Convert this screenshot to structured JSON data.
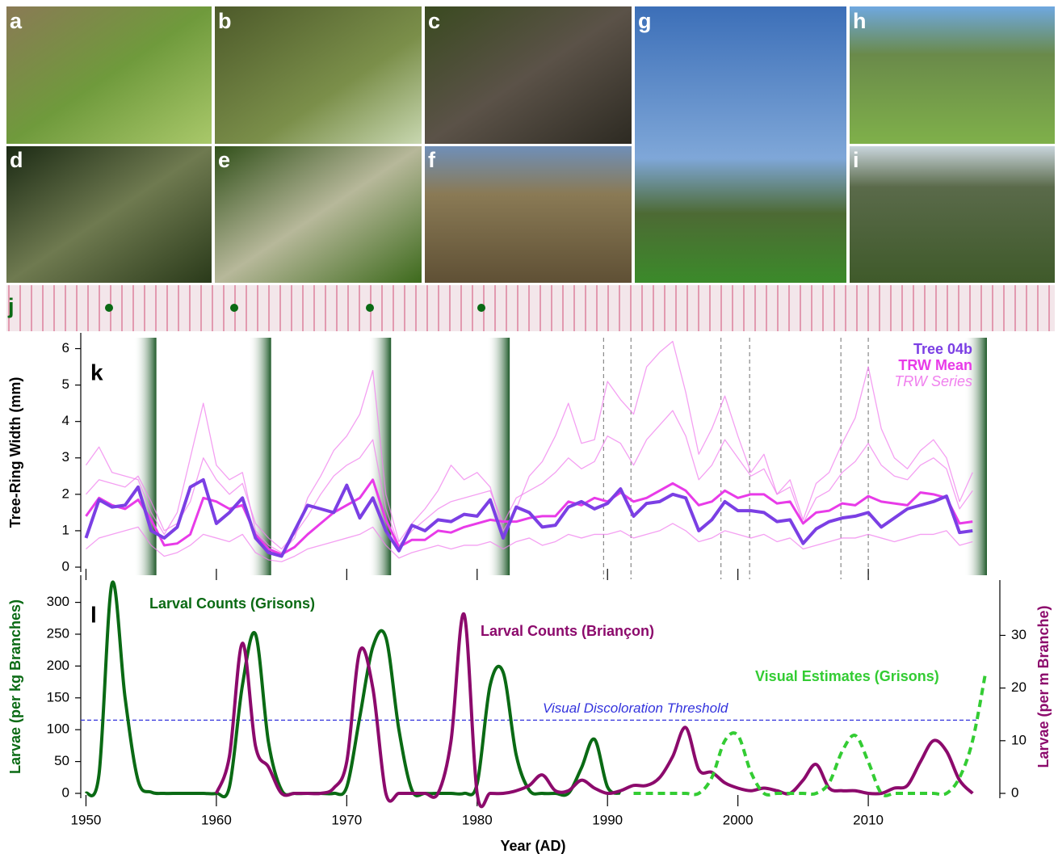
{
  "photo_panels": [
    "a",
    "b",
    "c",
    "d",
    "e",
    "f",
    "g",
    "h",
    "i"
  ],
  "strip_label": "j",
  "chart_data": [
    {
      "type": "line",
      "panel_label": "k",
      "ylabel": "Tree-Ring Width (mm)",
      "xlim": [
        1949.6,
        2019.1
      ],
      "ylim": [
        0,
        6.3
      ],
      "yticks": [
        0,
        1,
        2,
        3,
        4,
        5,
        6
      ],
      "legend": "top-right",
      "outbreak_bands": [
        1955.4,
        1964.2,
        1973.4,
        1982.5,
        2019.1
      ],
      "event_lines": [
        1989.7,
        1991.8,
        1998.7,
        2000.9,
        2007.9,
        2010
      ],
      "x": [
        1950,
        1951,
        1952,
        1953,
        1954,
        1955,
        1956,
        1957,
        1958,
        1959,
        1960,
        1961,
        1962,
        1963,
        1964,
        1965,
        1966,
        1967,
        1968,
        1969,
        1970,
        1971,
        1972,
        1973,
        1974,
        1975,
        1976,
        1977,
        1978,
        1979,
        1980,
        1981,
        1982,
        1983,
        1984,
        1985,
        1986,
        1987,
        1988,
        1989,
        1990,
        1991,
        1992,
        1993,
        1994,
        1995,
        1996,
        1997,
        1998,
        1999,
        2000,
        2001,
        2002,
        2003,
        2004,
        2005,
        2006,
        2007,
        2008,
        2009,
        2010,
        2011,
        2012,
        2013,
        2014,
        2015,
        2016,
        2017,
        2018
      ],
      "series": [
        {
          "name": "TRW Series",
          "color": "#f080ee",
          "values": [
            [
              2.8,
              3.3,
              2.6,
              2.5,
              2.4,
              1.5,
              0.9,
              1.5,
              3.0,
              4.5,
              2.8,
              2.4,
              2.6,
              1.0,
              0.6,
              0.4,
              0.8,
              1.9,
              2.5,
              3.2,
              3.6,
              4.2,
              5.4,
              2.0,
              0.7,
              1.2,
              1.6,
              2.1,
              2.8,
              2.4,
              2.6,
              2.2,
              1.0,
              1.6,
              2.5,
              2.9,
              3.6,
              4.5,
              3.4,
              3.5,
              5.1,
              4.6,
              4.2,
              5.5,
              5.9,
              6.2,
              4.8,
              3.1,
              3.8,
              4.7,
              3.6,
              2.6,
              3.1,
              2.0,
              2.4,
              1.3,
              2.3,
              2.6,
              3.4,
              4.1,
              5.5,
              3.8,
              3.0,
              2.7,
              3.2,
              3.5,
              3.0,
              1.8,
              2.6
            ],
            [
              0.5,
              0.8,
              0.9,
              1.0,
              1.1,
              0.6,
              0.3,
              0.4,
              0.6,
              0.9,
              0.8,
              0.7,
              0.9,
              0.4,
              0.2,
              0.15,
              0.3,
              0.5,
              0.6,
              0.7,
              0.8,
              0.9,
              1.1,
              0.6,
              0.25,
              0.4,
              0.5,
              0.6,
              0.5,
              0.6,
              0.6,
              0.7,
              0.5,
              0.7,
              0.8,
              0.6,
              0.7,
              0.9,
              0.8,
              0.9,
              0.9,
              1.0,
              0.8,
              0.9,
              1.0,
              1.2,
              1.0,
              0.7,
              0.8,
              1.0,
              0.9,
              0.8,
              0.9,
              0.7,
              0.8,
              0.5,
              0.6,
              0.7,
              0.8,
              0.8,
              0.9,
              0.8,
              0.7,
              0.8,
              0.9,
              0.9,
              1.0,
              0.6,
              0.7
            ],
            [
              2.0,
              2.4,
              2.3,
              2.2,
              2.5,
              1.8,
              1.0,
              1.2,
              1.8,
              3.0,
              2.4,
              2.0,
              2.3,
              1.2,
              0.8,
              0.5,
              0.9,
              1.4,
              2.0,
              2.5,
              2.8,
              3.0,
              3.5,
              1.6,
              0.6,
              1.0,
              1.3,
              1.6,
              1.8,
              1.9,
              2.0,
              2.1,
              1.2,
              1.9,
              2.1,
              2.3,
              2.6,
              3.0,
              2.7,
              2.9,
              3.6,
              3.4,
              2.8,
              3.5,
              3.9,
              4.3,
              3.6,
              2.4,
              2.8,
              3.5,
              3.0,
              2.5,
              2.7,
              2.0,
              2.2,
              1.2,
              1.9,
              2.1,
              2.6,
              2.9,
              3.4,
              2.8,
              2.5,
              2.4,
              2.8,
              3.0,
              2.7,
              1.6,
              2.1
            ]
          ]
        },
        {
          "name": "TRW Mean",
          "color": "#e83be8",
          "values": [
            1.4,
            1.9,
            1.7,
            1.6,
            1.85,
            1.3,
            0.6,
            0.65,
            0.9,
            1.9,
            1.8,
            1.6,
            1.7,
            0.9,
            0.5,
            0.35,
            0.55,
            0.9,
            1.2,
            1.5,
            1.7,
            1.9,
            2.4,
            1.3,
            0.55,
            0.75,
            0.75,
            1.0,
            0.95,
            1.1,
            1.2,
            1.3,
            1.25,
            1.25,
            1.35,
            1.4,
            1.4,
            1.8,
            1.7,
            1.9,
            1.8,
            2.05,
            1.8,
            1.9,
            2.1,
            2.3,
            2.1,
            1.7,
            1.8,
            2.1,
            1.9,
            2.0,
            2.0,
            1.75,
            1.8,
            1.2,
            1.5,
            1.55,
            1.75,
            1.7,
            1.95,
            1.8,
            1.75,
            1.7,
            2.05,
            2.0,
            1.9,
            1.2,
            1.25
          ]
        },
        {
          "name": "Tree 04b",
          "color": "#7b3fe4",
          "values": [
            0.8,
            1.85,
            1.65,
            1.7,
            2.2,
            1.0,
            0.8,
            1.1,
            2.2,
            2.4,
            1.2,
            1.5,
            1.9,
            0.8,
            0.4,
            0.3,
            1.0,
            1.7,
            1.6,
            1.5,
            2.25,
            1.35,
            1.9,
            1.0,
            0.45,
            1.15,
            1.0,
            1.3,
            1.25,
            1.45,
            1.4,
            1.85,
            0.8,
            1.65,
            1.5,
            1.1,
            1.15,
            1.65,
            1.8,
            1.6,
            1.75,
            2.15,
            1.4,
            1.75,
            1.8,
            2.0,
            1.9,
            1.0,
            1.3,
            1.8,
            1.55,
            1.55,
            1.5,
            1.25,
            1.3,
            0.65,
            1.05,
            1.25,
            1.35,
            1.4,
            1.5,
            1.1,
            1.35,
            1.6,
            1.7,
            1.8,
            1.95,
            0.95,
            1.0
          ]
        }
      ]
    },
    {
      "type": "line",
      "panel_label": "l",
      "xlabel": "Year (AD)",
      "ylabel": "Larvae (per kg Branches)",
      "y2label": "Larvae (per m Branche)",
      "xlim": [
        1949.6,
        2019.1
      ],
      "xticks": [
        1950,
        1960,
        1970,
        1980,
        1990,
        2000,
        2010
      ],
      "ylim": [
        0,
        335
      ],
      "yticks": [
        0,
        50,
        100,
        150,
        200,
        250,
        300
      ],
      "y2lim": [
        0,
        40.5
      ],
      "y2ticks": [
        0,
        10,
        20,
        30
      ],
      "threshold": {
        "label": "Visual Discoloration Threshold",
        "value": 115,
        "color": "#3333dd"
      },
      "series": [
        {
          "name": "Larval Counts (Grisons)",
          "color": "#0a6a14",
          "x": [
            1950,
            1951,
            1952,
            1953,
            1954,
            1955,
            1956,
            1957,
            1958,
            1959,
            1960,
            1961,
            1962,
            1963,
            1964,
            1965,
            1966,
            1967,
            1968,
            1969,
            1970,
            1971,
            1972,
            1973,
            1974,
            1975,
            1976,
            1977,
            1978,
            1979,
            1980,
            1981,
            1982,
            1983,
            1984,
            1985,
            1986,
            1987,
            1988,
            1989,
            1990,
            1991
          ],
          "values": [
            0,
            30,
            330,
            150,
            20,
            2,
            0,
            0,
            0,
            0,
            0,
            10,
            170,
            250,
            80,
            5,
            0,
            0,
            0,
            0,
            10,
            120,
            230,
            245,
            100,
            5,
            0,
            0,
            0,
            0,
            15,
            170,
            190,
            60,
            5,
            0,
            0,
            0,
            40,
            85,
            10,
            0
          ]
        },
        {
          "name": "Larval Counts (Briançon)",
          "color": "#8c0a6c",
          "axis": "y2",
          "x": [
            1960,
            1961,
            1962,
            1963,
            1964,
            1965,
            1966,
            1967,
            1968,
            1969,
            1970,
            1971,
            1972,
            1973,
            1974,
            1975,
            1976,
            1977,
            1978,
            1979,
            1980,
            1981,
            1982,
            1983,
            1984,
            1985,
            1986,
            1987,
            1988,
            1989,
            1990,
            1991,
            1992,
            1993,
            1994,
            1995,
            1996,
            1997,
            1998,
            1999,
            2000,
            2001,
            2002,
            2003,
            2004,
            2005,
            2006,
            2007,
            2008,
            2009,
            2010,
            2011,
            2012,
            2013,
            2014,
            2015,
            2016,
            2017,
            2018
          ],
          "values": [
            0,
            7,
            28.5,
            9,
            5,
            0,
            0,
            0,
            0,
            1,
            6,
            27,
            20,
            0,
            0,
            0,
            0,
            0,
            10,
            34,
            0,
            0,
            0,
            0.5,
            1.5,
            3.5,
            0.5,
            0.5,
            2.5,
            1,
            0,
            0.5,
            1.5,
            1.5,
            3,
            7,
            12.5,
            4.5,
            4,
            2,
            1,
            0.5,
            1,
            0.5,
            0,
            2.5,
            5.5,
            1,
            0.5,
            0.5,
            0,
            0,
            1,
            1.5,
            6,
            10,
            8,
            2.5,
            0
          ]
        },
        {
          "name": "Visual Estimates (Grisons)",
          "color": "#33cc33",
          "axis": "y2",
          "dashed": true,
          "x": [
            1992,
            1993,
            1994,
            1995,
            1996,
            1997,
            1998,
            1999,
            2000,
            2001,
            2002,
            2003,
            2004,
            2005,
            2006,
            2007,
            2008,
            2009,
            2010,
            2011,
            2012,
            2013,
            2014,
            2015,
            2016,
            2017,
            2018,
            2019
          ],
          "values": [
            0,
            0,
            0,
            0,
            0,
            0,
            3,
            10,
            11,
            4,
            0,
            0,
            0,
            0,
            0,
            2,
            8,
            11,
            6,
            0,
            0,
            0,
            0,
            0,
            0,
            3,
            10,
            23
          ]
        }
      ]
    }
  ]
}
